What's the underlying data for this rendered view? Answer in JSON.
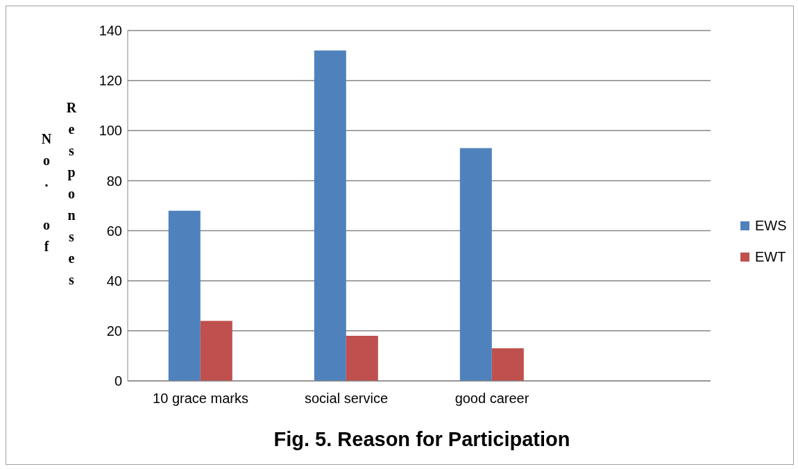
{
  "chart_data": {
    "type": "bar",
    "title": "Fig. 5. Reason for Participation",
    "ylabel": "No. of Responses",
    "categories": [
      "10 grace marks",
      "social service",
      "good career",
      null
    ],
    "series": [
      {
        "name": "EWS",
        "color": "#4f81bd",
        "values": [
          68,
          132,
          93,
          null
        ]
      },
      {
        "name": "EWT",
        "color": "#c0504d",
        "values": [
          24,
          18,
          13,
          null
        ]
      }
    ],
    "ylim": [
      0,
      140
    ],
    "yticks": [
      0,
      20,
      40,
      60,
      80,
      100,
      120,
      140
    ],
    "grid": "y",
    "legend": "right"
  }
}
